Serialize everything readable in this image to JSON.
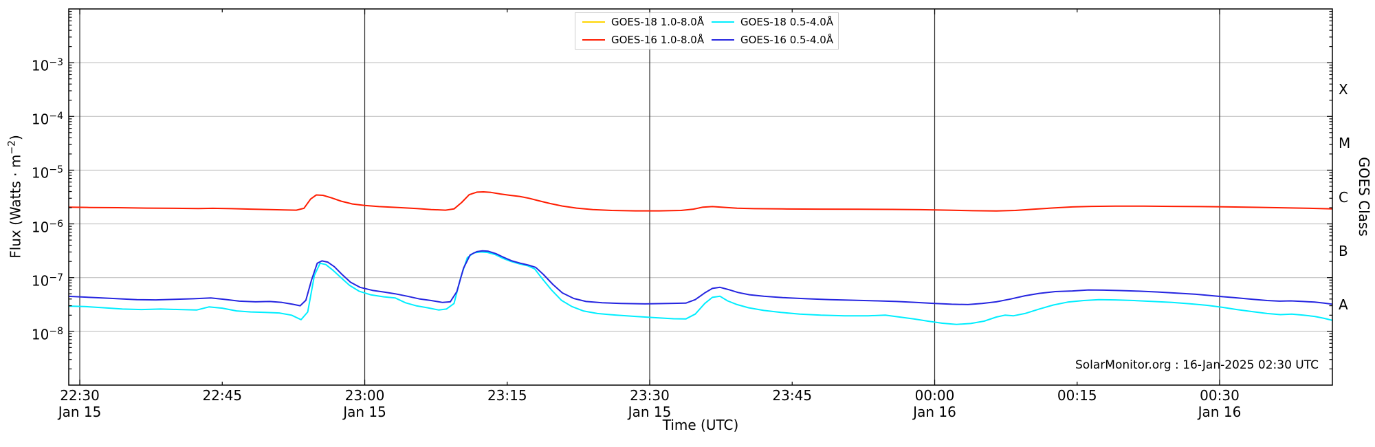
{
  "branding": "SolarMonitor.org : 16-Jan-2025 02:30 UTC",
  "chart_data": {
    "type": "line",
    "xlabel": "Time (UTC)",
    "ylabel": {
      "prefix": "Flux (Watts · m",
      "sup": "−2",
      "suffix": ")"
    },
    "ylabel_right": "GOES Class",
    "yscale": "log",
    "ylim": [
      1e-09,
      0.01
    ],
    "xlim_minutes_after_2200_utc": [
      28.84,
      161.87
    ],
    "grid": true,
    "grid_color": "#b8b8b8",
    "vline_color": "#2b2b2b",
    "legend_position": "top-center",
    "x_ticks_major": [
      {
        "t": 30,
        "label": "22:30",
        "date": "Jan 15"
      },
      {
        "t": 60,
        "label": "23:00",
        "date": "Jan 15"
      },
      {
        "t": 90,
        "label": "23:30",
        "date": "Jan 15"
      },
      {
        "t": 120,
        "label": "00:00",
        "date": "Jan 16"
      },
      {
        "t": 150,
        "label": "00:30",
        "date": "Jan 16"
      }
    ],
    "x_ticks_minor": [
      {
        "t": 45,
        "label": "22:45"
      },
      {
        "t": 75,
        "label": "23:15"
      },
      {
        "t": 105,
        "label": "23:45"
      },
      {
        "t": 135,
        "label": "00:15"
      }
    ],
    "y_ticks": [
      {
        "value": 0.001,
        "exp": "−3"
      },
      {
        "value": 0.0001,
        "exp": "−4"
      },
      {
        "value": 1e-05,
        "exp": "−5"
      },
      {
        "value": 1e-06,
        "exp": "−6"
      },
      {
        "value": 1e-07,
        "exp": "−7"
      },
      {
        "value": 1e-08,
        "exp": "−8"
      }
    ],
    "goes_classes": [
      {
        "label": "X",
        "log_center": -3.5
      },
      {
        "label": "M",
        "log_center": -4.5
      },
      {
        "label": "C",
        "log_center": -5.5
      },
      {
        "label": "B",
        "log_center": -6.5
      },
      {
        "label": "A",
        "log_center": -7.5
      }
    ],
    "series": [
      {
        "name": "GOES-18 1.0-8.0Å",
        "color": "#ffd500",
        "visible_in_plot": false,
        "points": []
      },
      {
        "name": "GOES-16 1.0-8.0Å",
        "color": "#ff1c00",
        "visible_in_plot": true,
        "points": [
          [
            28.8,
            2.05e-06
          ],
          [
            31,
            2.02e-06
          ],
          [
            34,
            2e-06
          ],
          [
            37,
            1.97e-06
          ],
          [
            40,
            1.95e-06
          ],
          [
            42.5,
            1.93e-06
          ],
          [
            44,
            1.95e-06
          ],
          [
            46,
            1.92e-06
          ],
          [
            48,
            1.88e-06
          ],
          [
            50,
            1.85e-06
          ],
          [
            51.5,
            1.82e-06
          ],
          [
            52.8,
            1.8e-06
          ],
          [
            53.6,
            1.95e-06
          ],
          [
            54.3,
            2.9e-06
          ],
          [
            54.9,
            3.45e-06
          ],
          [
            55.6,
            3.4e-06
          ],
          [
            56.5,
            3.05e-06
          ],
          [
            57.5,
            2.65e-06
          ],
          [
            58.7,
            2.35e-06
          ],
          [
            60,
            2.2e-06
          ],
          [
            61.5,
            2.1e-06
          ],
          [
            63.5,
            2.02e-06
          ],
          [
            65.5,
            1.93e-06
          ],
          [
            67,
            1.85e-06
          ],
          [
            68.5,
            1.8e-06
          ],
          [
            69.4,
            1.9e-06
          ],
          [
            70.2,
            2.5e-06
          ],
          [
            71,
            3.5e-06
          ],
          [
            71.8,
            3.9e-06
          ],
          [
            72.5,
            3.95e-06
          ],
          [
            73.3,
            3.85e-06
          ],
          [
            74.3,
            3.6e-06
          ],
          [
            75.3,
            3.4e-06
          ],
          [
            76.3,
            3.25e-06
          ],
          [
            77.3,
            3e-06
          ],
          [
            78.3,
            2.7e-06
          ],
          [
            79.5,
            2.4e-06
          ],
          [
            80.8,
            2.15e-06
          ],
          [
            82.3,
            1.97e-06
          ],
          [
            84,
            1.85e-06
          ],
          [
            86,
            1.78e-06
          ],
          [
            88.5,
            1.75e-06
          ],
          [
            91,
            1.75e-06
          ],
          [
            93.3,
            1.78e-06
          ],
          [
            94.6,
            1.88e-06
          ],
          [
            95.6,
            2.05e-06
          ],
          [
            96.6,
            2.1e-06
          ],
          [
            97.8,
            2.03e-06
          ],
          [
            99.2,
            1.96e-06
          ],
          [
            101,
            1.92e-06
          ],
          [
            104,
            1.9e-06
          ],
          [
            108,
            1.88e-06
          ],
          [
            112,
            1.87e-06
          ],
          [
            115.5,
            1.86e-06
          ],
          [
            118.5,
            1.84e-06
          ],
          [
            121.5,
            1.8e-06
          ],
          [
            124,
            1.76e-06
          ],
          [
            126.5,
            1.74e-06
          ],
          [
            128.5,
            1.78e-06
          ],
          [
            130.5,
            1.88e-06
          ],
          [
            132.5,
            1.98e-06
          ],
          [
            134.5,
            2.07e-06
          ],
          [
            136.5,
            2.12e-06
          ],
          [
            139,
            2.14e-06
          ],
          [
            142,
            2.14e-06
          ],
          [
            145,
            2.12e-06
          ],
          [
            148,
            2.1e-06
          ],
          [
            151,
            2.07e-06
          ],
          [
            154,
            2.03e-06
          ],
          [
            157,
            1.99e-06
          ],
          [
            159.5,
            1.95e-06
          ],
          [
            161.9,
            1.9e-06
          ]
        ]
      },
      {
        "name": "GOES-18 0.5-4.0Å",
        "color": "#00eeff",
        "visible_in_plot": true,
        "points": [
          [
            28.8,
            2.95e-08
          ],
          [
            30.5,
            2.9e-08
          ],
          [
            32.5,
            2.75e-08
          ],
          [
            34.5,
            2.6e-08
          ],
          [
            36.5,
            2.55e-08
          ],
          [
            38.5,
            2.6e-08
          ],
          [
            40.5,
            2.55e-08
          ],
          [
            42.3,
            2.5e-08
          ],
          [
            43.6,
            2.85e-08
          ],
          [
            45,
            2.7e-08
          ],
          [
            46.5,
            2.4e-08
          ],
          [
            48,
            2.3e-08
          ],
          [
            49.5,
            2.25e-08
          ],
          [
            51,
            2.2e-08
          ],
          [
            52.3,
            2e-08
          ],
          [
            53.3,
            1.65e-08
          ],
          [
            54,
            2.3e-08
          ],
          [
            54.7,
            1.1e-07
          ],
          [
            55.3,
            1.85e-07
          ],
          [
            55.9,
            1.75e-07
          ],
          [
            56.6,
            1.4e-07
          ],
          [
            57.5,
            1e-07
          ],
          [
            58.4,
            7.2e-08
          ],
          [
            59.4,
            5.6e-08
          ],
          [
            60.6,
            4.8e-08
          ],
          [
            62,
            4.4e-08
          ],
          [
            63.2,
            4.2e-08
          ],
          [
            64.3,
            3.4e-08
          ],
          [
            65.4,
            3e-08
          ],
          [
            66.6,
            2.75e-08
          ],
          [
            67.8,
            2.5e-08
          ],
          [
            68.6,
            2.6e-08
          ],
          [
            69.4,
            3.3e-08
          ],
          [
            70.1,
            1e-07
          ],
          [
            70.8,
            2.35e-07
          ],
          [
            71.5,
            2.9e-07
          ],
          [
            72.2,
            3e-07
          ],
          [
            72.9,
            2.95e-07
          ],
          [
            73.7,
            2.7e-07
          ],
          [
            74.5,
            2.3e-07
          ],
          [
            75.4,
            2e-07
          ],
          [
            76.3,
            1.8e-07
          ],
          [
            77.2,
            1.65e-07
          ],
          [
            77.9,
            1.45e-07
          ],
          [
            78.7,
            9.5e-08
          ],
          [
            79.7,
            5.8e-08
          ],
          [
            80.7,
            3.8e-08
          ],
          [
            81.8,
            2.9e-08
          ],
          [
            83,
            2.4e-08
          ],
          [
            84.5,
            2.15e-08
          ],
          [
            86.5,
            2e-08
          ],
          [
            88.5,
            1.9e-08
          ],
          [
            90.5,
            1.8e-08
          ],
          [
            92.5,
            1.72e-08
          ],
          [
            93.8,
            1.7e-08
          ],
          [
            94.8,
            2.1e-08
          ],
          [
            95.8,
            3.3e-08
          ],
          [
            96.6,
            4.3e-08
          ],
          [
            97.4,
            4.5e-08
          ],
          [
            98.2,
            3.7e-08
          ],
          [
            99.2,
            3.15e-08
          ],
          [
            100.4,
            2.75e-08
          ],
          [
            102,
            2.45e-08
          ],
          [
            103.8,
            2.25e-08
          ],
          [
            105.8,
            2.1e-08
          ],
          [
            108,
            2e-08
          ],
          [
            110.5,
            1.95e-08
          ],
          [
            113,
            1.95e-08
          ],
          [
            114.8,
            2e-08
          ],
          [
            116.3,
            1.85e-08
          ],
          [
            117.8,
            1.7e-08
          ],
          [
            119.3,
            1.55e-08
          ],
          [
            120.8,
            1.42e-08
          ],
          [
            122.3,
            1.35e-08
          ],
          [
            123.8,
            1.4e-08
          ],
          [
            125.2,
            1.55e-08
          ],
          [
            126.5,
            1.85e-08
          ],
          [
            127.4,
            2e-08
          ],
          [
            128.3,
            1.95e-08
          ],
          [
            129.5,
            2.15e-08
          ],
          [
            131,
            2.6e-08
          ],
          [
            132.5,
            3.1e-08
          ],
          [
            134,
            3.5e-08
          ],
          [
            135.7,
            3.75e-08
          ],
          [
            137.3,
            3.9e-08
          ],
          [
            139,
            3.85e-08
          ],
          [
            141,
            3.75e-08
          ],
          [
            143,
            3.6e-08
          ],
          [
            145,
            3.45e-08
          ],
          [
            147,
            3.25e-08
          ],
          [
            148.7,
            3.05e-08
          ],
          [
            150.3,
            2.8e-08
          ],
          [
            151.8,
            2.55e-08
          ],
          [
            153.3,
            2.35e-08
          ],
          [
            155,
            2.15e-08
          ],
          [
            156.4,
            2.05e-08
          ],
          [
            157.6,
            2.1e-08
          ],
          [
            158.8,
            2e-08
          ],
          [
            160,
            1.9e-08
          ],
          [
            161,
            1.75e-08
          ],
          [
            161.9,
            1.6e-08
          ]
        ]
      },
      {
        "name": "GOES-16 0.5-4.0Å",
        "color": "#2525e0",
        "visible_in_plot": true,
        "points": [
          [
            28.8,
            4.5e-08
          ],
          [
            31,
            4.3e-08
          ],
          [
            33.5,
            4.1e-08
          ],
          [
            36,
            3.9e-08
          ],
          [
            38,
            3.85e-08
          ],
          [
            40,
            3.95e-08
          ],
          [
            42,
            4.05e-08
          ],
          [
            43.8,
            4.2e-08
          ],
          [
            45.2,
            3.95e-08
          ],
          [
            46.8,
            3.65e-08
          ],
          [
            48.5,
            3.55e-08
          ],
          [
            50,
            3.6e-08
          ],
          [
            51.3,
            3.45e-08
          ],
          [
            52.4,
            3.2e-08
          ],
          [
            53.2,
            3e-08
          ],
          [
            53.8,
            3.8e-08
          ],
          [
            54.4,
            9e-08
          ],
          [
            55,
            1.85e-07
          ],
          [
            55.5,
            2.05e-07
          ],
          [
            56.1,
            1.95e-07
          ],
          [
            56.8,
            1.6e-07
          ],
          [
            57.6,
            1.15e-07
          ],
          [
            58.5,
            8.2e-08
          ],
          [
            59.5,
            6.6e-08
          ],
          [
            60.8,
            5.8e-08
          ],
          [
            62,
            5.4e-08
          ],
          [
            63.2,
            5e-08
          ],
          [
            64.5,
            4.5e-08
          ],
          [
            65.8,
            4e-08
          ],
          [
            67,
            3.75e-08
          ],
          [
            68.2,
            3.45e-08
          ],
          [
            69,
            3.55e-08
          ],
          [
            69.7,
            5.5e-08
          ],
          [
            70.4,
            1.5e-07
          ],
          [
            71.1,
            2.65e-07
          ],
          [
            71.8,
            3.05e-07
          ],
          [
            72.4,
            3.15e-07
          ],
          [
            73,
            3.1e-07
          ],
          [
            73.8,
            2.8e-07
          ],
          [
            74.6,
            2.4e-07
          ],
          [
            75.5,
            2.05e-07
          ],
          [
            76.4,
            1.85e-07
          ],
          [
            77.3,
            1.7e-07
          ],
          [
            78,
            1.55e-07
          ],
          [
            78.8,
            1.15e-07
          ],
          [
            79.8,
            7.5e-08
          ],
          [
            80.8,
            5.2e-08
          ],
          [
            82,
            4.1e-08
          ],
          [
            83.3,
            3.6e-08
          ],
          [
            85,
            3.4e-08
          ],
          [
            87,
            3.3e-08
          ],
          [
            89.5,
            3.25e-08
          ],
          [
            92,
            3.3e-08
          ],
          [
            93.8,
            3.35e-08
          ],
          [
            94.8,
            3.9e-08
          ],
          [
            95.8,
            5.2e-08
          ],
          [
            96.6,
            6.3e-08
          ],
          [
            97.4,
            6.6e-08
          ],
          [
            98.3,
            6e-08
          ],
          [
            99.3,
            5.3e-08
          ],
          [
            100.5,
            4.8e-08
          ],
          [
            102,
            4.5e-08
          ],
          [
            104,
            4.25e-08
          ],
          [
            106.5,
            4.05e-08
          ],
          [
            109,
            3.9e-08
          ],
          [
            111.5,
            3.8e-08
          ],
          [
            114,
            3.7e-08
          ],
          [
            116,
            3.6e-08
          ],
          [
            118,
            3.45e-08
          ],
          [
            120,
            3.3e-08
          ],
          [
            121.8,
            3.2e-08
          ],
          [
            123.5,
            3.15e-08
          ],
          [
            125,
            3.3e-08
          ],
          [
            126.5,
            3.55e-08
          ],
          [
            128,
            4e-08
          ],
          [
            129.5,
            4.6e-08
          ],
          [
            131,
            5.1e-08
          ],
          [
            132.7,
            5.5e-08
          ],
          [
            134.5,
            5.65e-08
          ],
          [
            136.2,
            5.9e-08
          ],
          [
            137.8,
            5.85e-08
          ],
          [
            139.5,
            5.75e-08
          ],
          [
            141.5,
            5.6e-08
          ],
          [
            143.5,
            5.4e-08
          ],
          [
            145.5,
            5.15e-08
          ],
          [
            147.5,
            4.9e-08
          ],
          [
            149.5,
            4.55e-08
          ],
          [
            151.5,
            4.25e-08
          ],
          [
            153.5,
            3.95e-08
          ],
          [
            155,
            3.75e-08
          ],
          [
            156.3,
            3.65e-08
          ],
          [
            157.5,
            3.7e-08
          ],
          [
            158.8,
            3.6e-08
          ],
          [
            160,
            3.5e-08
          ],
          [
            161,
            3.35e-08
          ],
          [
            161.9,
            3.2e-08
          ]
        ]
      }
    ]
  }
}
